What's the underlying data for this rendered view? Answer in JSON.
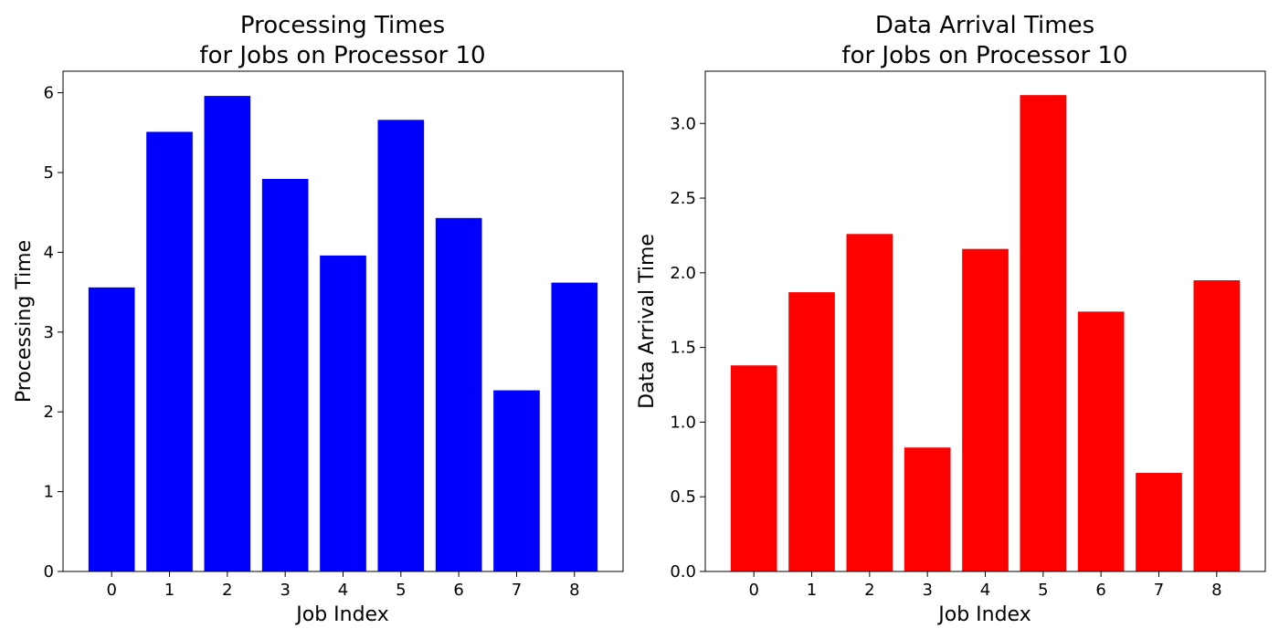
{
  "chart_data": [
    {
      "type": "bar",
      "title_line1": "Processing Times",
      "title_line2": "for Jobs on Processor 10",
      "xlabel": "Job Index",
      "ylabel": "Processing Time",
      "categories": [
        "0",
        "1",
        "2",
        "3",
        "4",
        "5",
        "6",
        "7",
        "8"
      ],
      "values": [
        3.56,
        5.51,
        5.96,
        4.92,
        3.96,
        5.66,
        4.43,
        2.27,
        3.62
      ],
      "color": "#0000ff",
      "ylim": [
        0,
        6.27
      ],
      "yticks": [
        0,
        1,
        2,
        3,
        4,
        5,
        6
      ],
      "ytick_labels": [
        "0",
        "1",
        "2",
        "3",
        "4",
        "5",
        "6"
      ],
      "grid": false,
      "legend": "none"
    },
    {
      "type": "bar",
      "title_line1": "Data Arrival Times",
      "title_line2": "for Jobs on Processor 10",
      "xlabel": "Job Index",
      "ylabel": "Data Arrival Time",
      "categories": [
        "0",
        "1",
        "2",
        "3",
        "4",
        "5",
        "6",
        "7",
        "8"
      ],
      "values": [
        1.38,
        1.87,
        2.26,
        0.83,
        2.16,
        3.19,
        1.74,
        0.66,
        1.95
      ],
      "color": "#ff0000",
      "ylim": [
        0,
        3.35
      ],
      "yticks": [
        0,
        0.5,
        1,
        1.5,
        2,
        2.5,
        3
      ],
      "ytick_labels": [
        "0.0",
        "0.5",
        "1.0",
        "1.5",
        "2.0",
        "2.5",
        "3.0"
      ],
      "grid": false,
      "legend": "none"
    }
  ]
}
